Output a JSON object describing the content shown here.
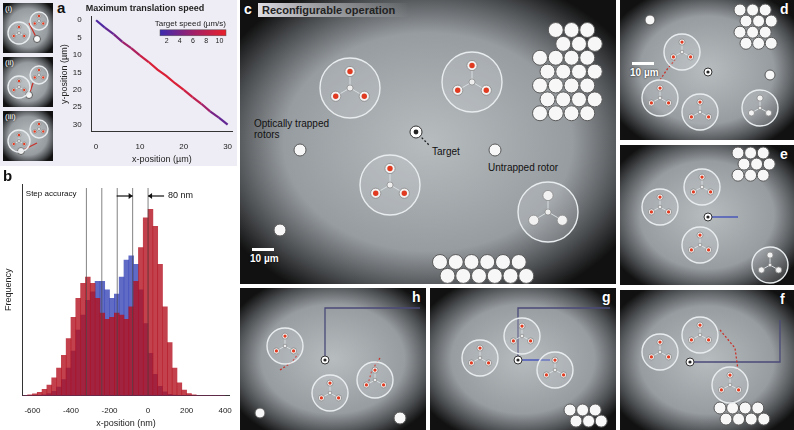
{
  "chart_data": [
    {
      "type": "line",
      "panel": "a",
      "title": "Maximum translation speed",
      "x_label": "x-position (µm)",
      "y_label": "y-position (µm)",
      "x": [
        0,
        2,
        4,
        6,
        8,
        10,
        12,
        14,
        16,
        18,
        20,
        22,
        24,
        26,
        28,
        30
      ],
      "values": [
        0,
        2.1,
        4,
        6.2,
        8,
        10.1,
        12,
        14.2,
        16,
        18.1,
        20,
        22.1,
        24,
        26.2,
        28,
        30
      ],
      "speed": [
        2,
        3,
        4,
        6,
        7,
        9,
        10,
        10,
        10,
        10,
        9,
        8,
        6,
        4,
        3,
        2
      ],
      "colorbar": {
        "label": "Target speed (µm/s)",
        "range": [
          1,
          11
        ],
        "ticks": [
          2,
          4,
          6,
          8,
          10
        ],
        "colors": [
          "#3b2bb0",
          "#a0206a",
          "#e8202a"
        ]
      },
      "xlim": [
        -1,
        31
      ],
      "xticks": [
        0,
        10,
        20,
        30
      ],
      "ylim": [
        32,
        -1
      ],
      "yticks": [
        0,
        5,
        10,
        15,
        20,
        25,
        30
      ]
    },
    {
      "type": "histogram",
      "panel": "b",
      "x_label": "x-position (nm)",
      "y_label": "Frequency",
      "annotations": [
        "Step accuracy",
        "80 nm"
      ],
      "bins": [
        -700,
        -675,
        -650,
        -625,
        -600,
        -575,
        -550,
        -525,
        -500,
        -475,
        -450,
        -425,
        -400,
        -375,
        -350,
        -325,
        -300,
        -275,
        -250,
        -225,
        -200,
        -175,
        -150,
        -125,
        -100,
        -75,
        -50,
        -25,
        0,
        25,
        50,
        75,
        100,
        125,
        150,
        175,
        200,
        225,
        250,
        275,
        300,
        325,
        350,
        375,
        400
      ],
      "series": [
        {
          "color": "#b3121f",
          "values": [
            0,
            0,
            0,
            20,
            40,
            80,
            150,
            250,
            420,
            650,
            950,
            1350,
            1850,
            2300,
            2650,
            2800,
            2650,
            2300,
            1950,
            1800,
            1850,
            1950,
            1900,
            1800,
            2100,
            2700,
            3500,
            4200,
            4400,
            4000,
            3100,
            2100,
            1250,
            650,
            300,
            130,
            50,
            20,
            0,
            0,
            0,
            0,
            0,
            0
          ]
        },
        {
          "color": "#3846b8",
          "values": [
            0,
            0,
            0,
            0,
            0,
            0,
            20,
            50,
            100,
            200,
            380,
            650,
            1050,
            1550,
            1900,
            2250,
            2450,
            2700,
            2700,
            2500,
            2300,
            2400,
            2800,
            3200,
            3300,
            3100,
            2500,
            1700,
            1000,
            500,
            220,
            90,
            30,
            10,
            0,
            0,
            0,
            0,
            0,
            0,
            0,
            0,
            0,
            0
          ]
        }
      ],
      "step_lines": [
        -320,
        -240,
        -160,
        -80,
        0
      ],
      "xlim": [
        -650,
        420
      ],
      "xticks": [
        -600,
        -400,
        -200,
        0,
        200,
        400
      ],
      "ylim": [
        0,
        5000
      ],
      "tick_labels": "x"
    }
  ],
  "images": {
    "insets": [
      "(i)",
      "(ii)",
      "(iii)"
    ],
    "panels": [
      {
        "label": "c",
        "title": "Reconfigurable operation",
        "annotations": [
          "Optically trapped rotors",
          "Target",
          "Untrapped rotor"
        ],
        "scale_bar": "10 µm"
      },
      {
        "label": "d",
        "scale_bar": "10 µm"
      },
      {
        "label": "e"
      },
      {
        "label": "f"
      },
      {
        "label": "g"
      },
      {
        "label": "h"
      }
    ]
  }
}
